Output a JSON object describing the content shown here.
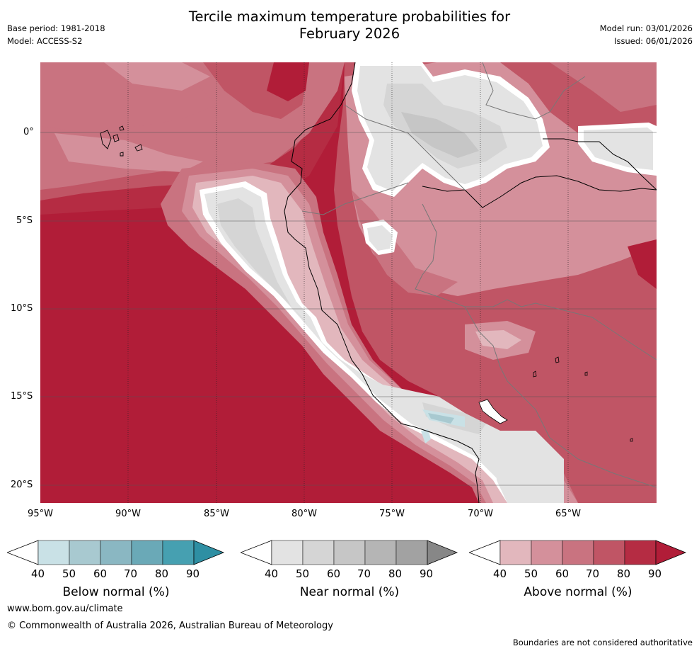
{
  "title_line1": "Tercile maximum temperature probabilities for",
  "title_line2": "February 2026",
  "meta": {
    "base_period": "Base period: 1981-2018",
    "model": "Model: ACCESS-S2",
    "model_run": "Model run: 03/01/2026",
    "issued": "Issued: 06/01/2026"
  },
  "axes": {
    "lat_labels": [
      "0°",
      "5°S",
      "10°S",
      "15°S",
      "20°S"
    ],
    "lon_labels": [
      "95°W",
      "90°W",
      "85°W",
      "80°W",
      "75°W",
      "70°W",
      "65°W"
    ]
  },
  "colorbars": [
    {
      "label": "Below normal (%)",
      "ticks": [
        "40",
        "50",
        "60",
        "70",
        "80",
        "90"
      ],
      "colors": [
        "#ffffff",
        "#c9e1e6",
        "#a8c9d0",
        "#8ab7c2",
        "#6aa9b7",
        "#46a0b1",
        "#2e8fa3"
      ]
    },
    {
      "label": "Near normal (%)",
      "ticks": [
        "40",
        "50",
        "60",
        "70",
        "80",
        "90"
      ],
      "colors": [
        "#ffffff",
        "#e3e3e3",
        "#d5d5d5",
        "#c6c6c6",
        "#b5b5b5",
        "#a2a2a2",
        "#878787"
      ]
    },
    {
      "label": "Above normal (%)",
      "ticks": [
        "40",
        "50",
        "60",
        "70",
        "80",
        "90"
      ],
      "colors": [
        "#ffffff",
        "#e2b7bd",
        "#d4909b",
        "#c97380",
        "#c05565",
        "#b52c43",
        "#b11d38"
      ]
    }
  ],
  "footer": {
    "website": "www.bom.gov.au/climate",
    "copyright": "© Commonwealth of Australia 2026, Australian Bureau of Meteorology",
    "disclaimer": "Boundaries are not considered authoritative"
  }
}
